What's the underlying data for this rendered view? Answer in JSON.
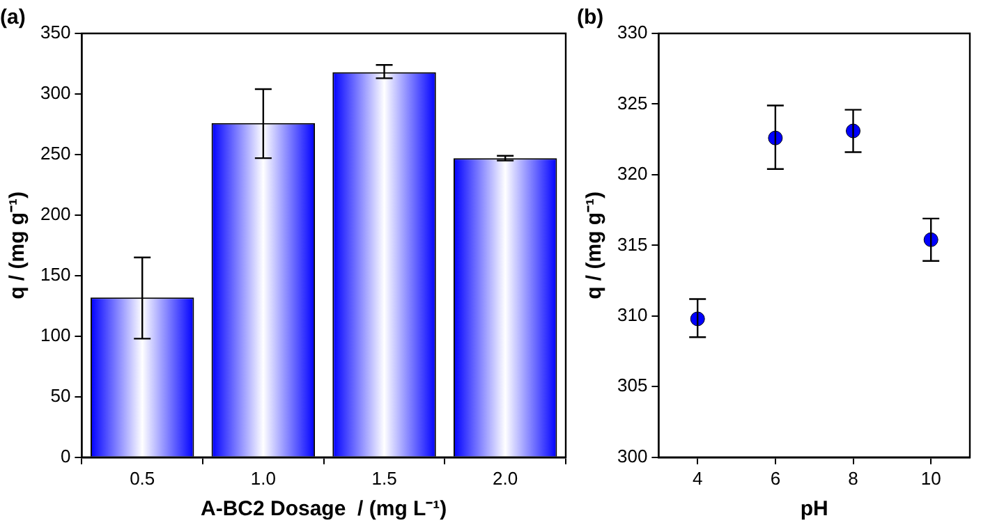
{
  "chart_data": [
    {
      "type": "bar",
      "title": "(a)",
      "categories": [
        "0.5",
        "1.0",
        "1.5",
        "2.0"
      ],
      "values": [
        132,
        276,
        318,
        247
      ],
      "errors": [
        [
          98,
          165
        ],
        [
          247,
          304
        ],
        [
          313,
          324
        ],
        [
          245,
          249
        ]
      ],
      "color": "#0000ff",
      "xlabel": "A-BC2 Dosage  / (mg L⁻¹)",
      "ylabel": "q / (mg g⁻¹)",
      "ylim": [
        0,
        350
      ],
      "yticks": [
        0,
        50,
        100,
        150,
        200,
        250,
        300,
        350
      ],
      "grid": false
    },
    {
      "type": "scatter",
      "title": "(b)",
      "x": [
        4,
        6,
        8,
        10
      ],
      "values": [
        309.8,
        322.6,
        323.1,
        315.4
      ],
      "errors": [
        [
          308.5,
          311.2
        ],
        [
          320.4,
          324.9
        ],
        [
          321.6,
          324.6
        ],
        [
          313.9,
          316.9
        ]
      ],
      "color": "#0000ff",
      "marker": "circle",
      "xlabel": "pH",
      "ylabel": "q / (mg g⁻¹)",
      "xlim": [
        3,
        11
      ],
      "xticks": [
        4,
        6,
        8,
        10
      ],
      "ylim": [
        300,
        330
      ],
      "yticks": [
        300,
        305,
        310,
        315,
        320,
        325,
        330
      ],
      "grid": false
    }
  ]
}
